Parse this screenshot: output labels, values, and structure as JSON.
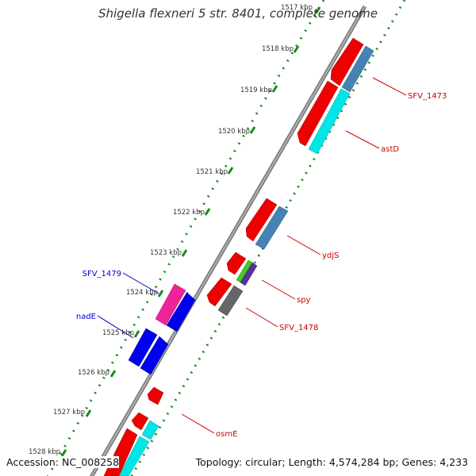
{
  "header": {
    "title": "Shigella flexneri 5 str. 8401, complete genome"
  },
  "footer": {
    "accession": "Accession: NC_008258",
    "topology": "Topology: circular; Length: 4,574,284 bp; Genes: 4,233"
  },
  "colors": {
    "backbone": "#808080",
    "ticks": "#1a8a1a",
    "tick_labels": "#333333",
    "forward_label": "#0000cc",
    "reverse_label": "#cc0000"
  },
  "scale": {
    "labels": [
      "1517 kbp",
      "1518 kbp",
      "1519 kbp",
      "1520 kbp",
      "1521 kbp",
      "1522 kbp",
      "1523 kbp",
      "1524 kbp",
      "1525 kbp",
      "1526 kbp",
      "1527 kbp",
      "1528 kbp"
    ]
  },
  "gene_labels": [
    {
      "text": "SFV_1473",
      "strand": "reverse"
    },
    {
      "text": "astD",
      "strand": "reverse"
    },
    {
      "text": "ydjS",
      "strand": "reverse"
    },
    {
      "text": "spy",
      "strand": "reverse"
    },
    {
      "text": "SFV_1478",
      "strand": "reverse"
    },
    {
      "text": "SFV_1479",
      "strand": "forward"
    },
    {
      "text": "nadE",
      "strand": "forward"
    },
    {
      "text": "osmE",
      "strand": "reverse"
    }
  ],
  "feature_colors": {
    "red": "#ee0000",
    "steelblue": "#4682b4",
    "cyan": "#00e5e5",
    "blue": "#0000ee",
    "magenta": "#ee2299",
    "gray": "#666666",
    "green": "#44cc22",
    "purple": "#553399"
  }
}
